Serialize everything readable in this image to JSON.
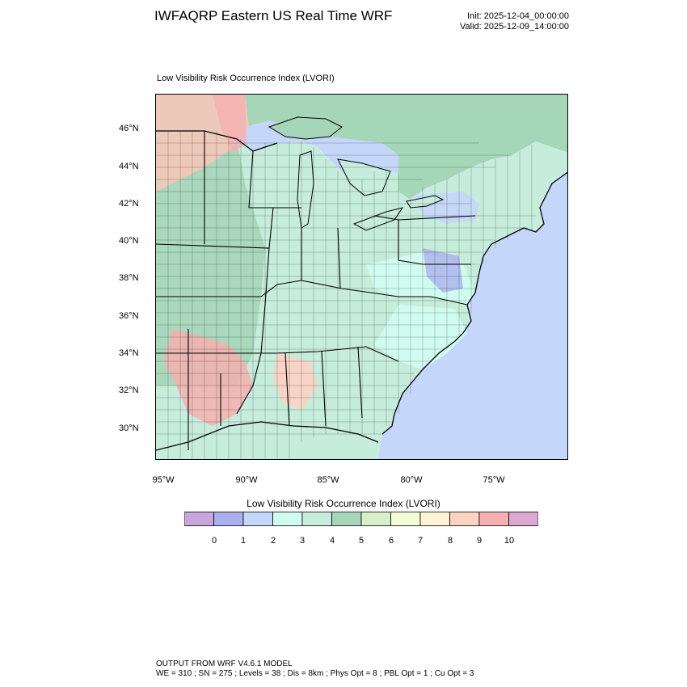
{
  "header": {
    "title": "IWFAQRP Eastern US Real Time WRF",
    "init": "Init: 2025-12-04_00:00:00",
    "valid": "Valid: 2025-12-09_14:00:00"
  },
  "map": {
    "subtitle": "Low Visibility Risk Occurrence Index   (LVORI)",
    "lat_labels": [
      "46°N",
      "44°N",
      "42°N",
      "40°N",
      "38°N",
      "36°N",
      "34°N",
      "32°N",
      "30°N"
    ],
    "lon_labels": [
      "95°W",
      "90°W",
      "85°W",
      "80°W",
      "75°W"
    ]
  },
  "colorbar": {
    "title": "Low Visibility Risk Occurrence Index  (LVORI)",
    "labels": [
      "0",
      "1",
      "2",
      "3",
      "4",
      "5",
      "6",
      "7",
      "8",
      "9",
      "10"
    ],
    "colors": [
      "#c8a8dc",
      "#aab0ec",
      "#c4d6fa",
      "#d0fcf0",
      "#c6ecdc",
      "#a6d6b8",
      "#d6f0c8",
      "#f4fcd6",
      "#fcf4d4",
      "#fcd2c2",
      "#f4b0b0",
      "#dca8d0"
    ]
  },
  "footer": {
    "line1": "OUTPUT FROM WRF V4.6.1 MODEL",
    "line2": "WE = 310 ; SN = 275 ; Levels = 38 ; Dis = 8km ; Phys Opt = 8 ; PBL Opt = 1 ; Cu Opt = 3"
  }
}
